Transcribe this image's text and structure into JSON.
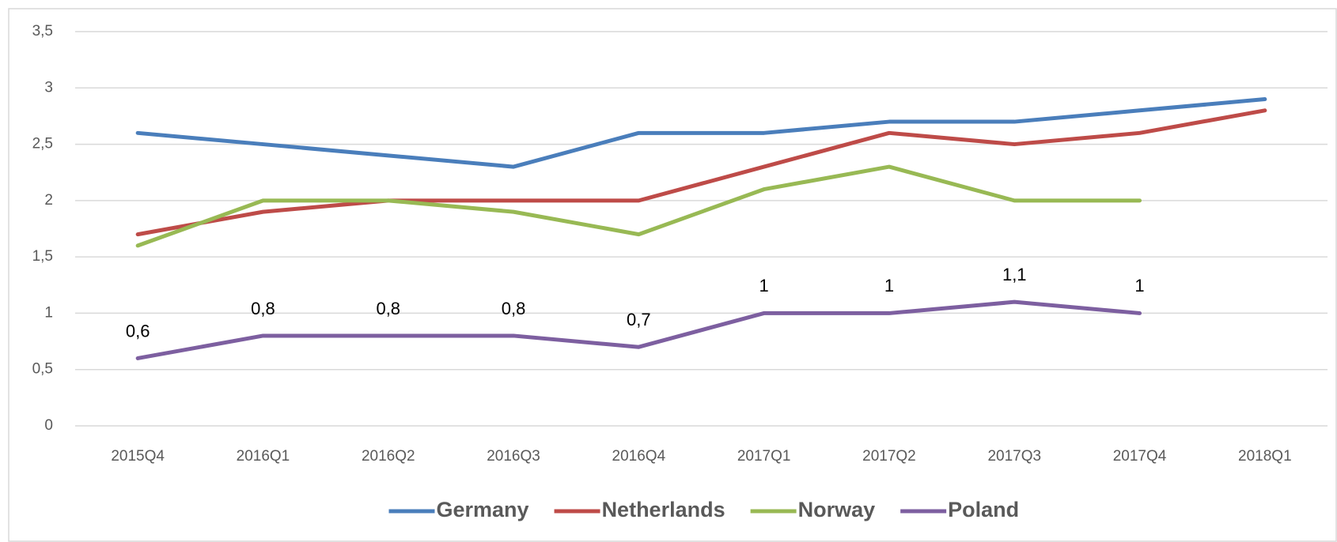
{
  "chart_data": {
    "type": "line",
    "categories": [
      "2015Q4",
      "2016Q1",
      "2016Q2",
      "2016Q3",
      "2016Q4",
      "2017Q1",
      "2017Q2",
      "2017Q3",
      "2017Q4",
      "2018Q1"
    ],
    "series": [
      {
        "name": "Germany",
        "color": "#4a7ebb",
        "values": [
          2.6,
          2.5,
          2.4,
          2.3,
          2.6,
          2.6,
          2.7,
          2.7,
          2.8,
          2.9
        ]
      },
      {
        "name": "Netherlands",
        "color": "#be4b48",
        "values": [
          1.7,
          1.9,
          2.0,
          2.0,
          2.0,
          2.3,
          2.6,
          2.5,
          2.6,
          2.8
        ]
      },
      {
        "name": "Norway",
        "color": "#98b954",
        "values": [
          1.6,
          2.0,
          2.0,
          1.9,
          1.7,
          2.1,
          2.3,
          2.0,
          2.0,
          null
        ]
      },
      {
        "name": "Poland",
        "color": "#7d5fa0",
        "values": [
          0.6,
          0.8,
          0.8,
          0.8,
          0.7,
          1,
          1,
          1.1,
          1,
          null
        ],
        "value_labels": [
          "0,6",
          "0,8",
          "0,8",
          "0,8",
          "0,7",
          "1",
          "1",
          "1,1",
          "1",
          null
        ]
      }
    ],
    "ylim": [
      0,
      3.5
    ],
    "yticks": [
      0,
      {
        "value": 0.5,
        "label": "0,5"
      },
      1,
      {
        "value": 1.5,
        "label": "1,5"
      },
      2,
      {
        "value": 2.5,
        "label": "2,5"
      },
      3,
      {
        "value": 3.5,
        "label": "3,5"
      }
    ],
    "grid": true,
    "legend": "bottom"
  }
}
